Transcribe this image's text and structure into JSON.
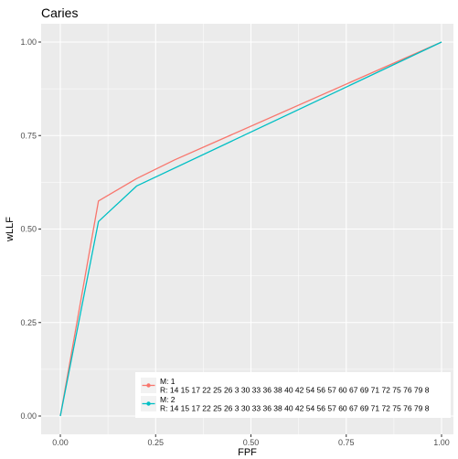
{
  "chart_data": {
    "type": "line",
    "title": "Caries",
    "xlabel": "FPF",
    "ylabel": "wLLF",
    "xlim": [
      0,
      1
    ],
    "ylim": [
      0,
      1
    ],
    "x_ticks": [
      "0.00",
      "0.25",
      "0.50",
      "0.75",
      "1.00"
    ],
    "y_ticks": [
      "0.00",
      "0.25",
      "0.50",
      "0.75",
      "1.00"
    ],
    "grid": true,
    "legend_position": "bottom-right",
    "series": [
      {
        "name_lines": [
          "M: 1",
          "R: 14 15 17 22 25 26 3 30 33 36 38 40 42 54 56 57 60 67 69 71 72 75 76 79 8"
        ],
        "color": "#F8766D",
        "points": [
          [
            0,
            0
          ],
          [
            0.1,
            0.575
          ],
          [
            0.2,
            0.635
          ],
          [
            0.3,
            0.685
          ],
          [
            1,
            1
          ]
        ]
      },
      {
        "name_lines": [
          "M: 2",
          "R: 14 15 17 22 25 26 3 30 33 36 38 40 42 54 56 57 60 67 69 71 72 75 76 79 8"
        ],
        "color": "#00BFC4",
        "points": [
          [
            0,
            0
          ],
          [
            0.1,
            0.52
          ],
          [
            0.2,
            0.615
          ],
          [
            1,
            1
          ]
        ]
      }
    ]
  }
}
